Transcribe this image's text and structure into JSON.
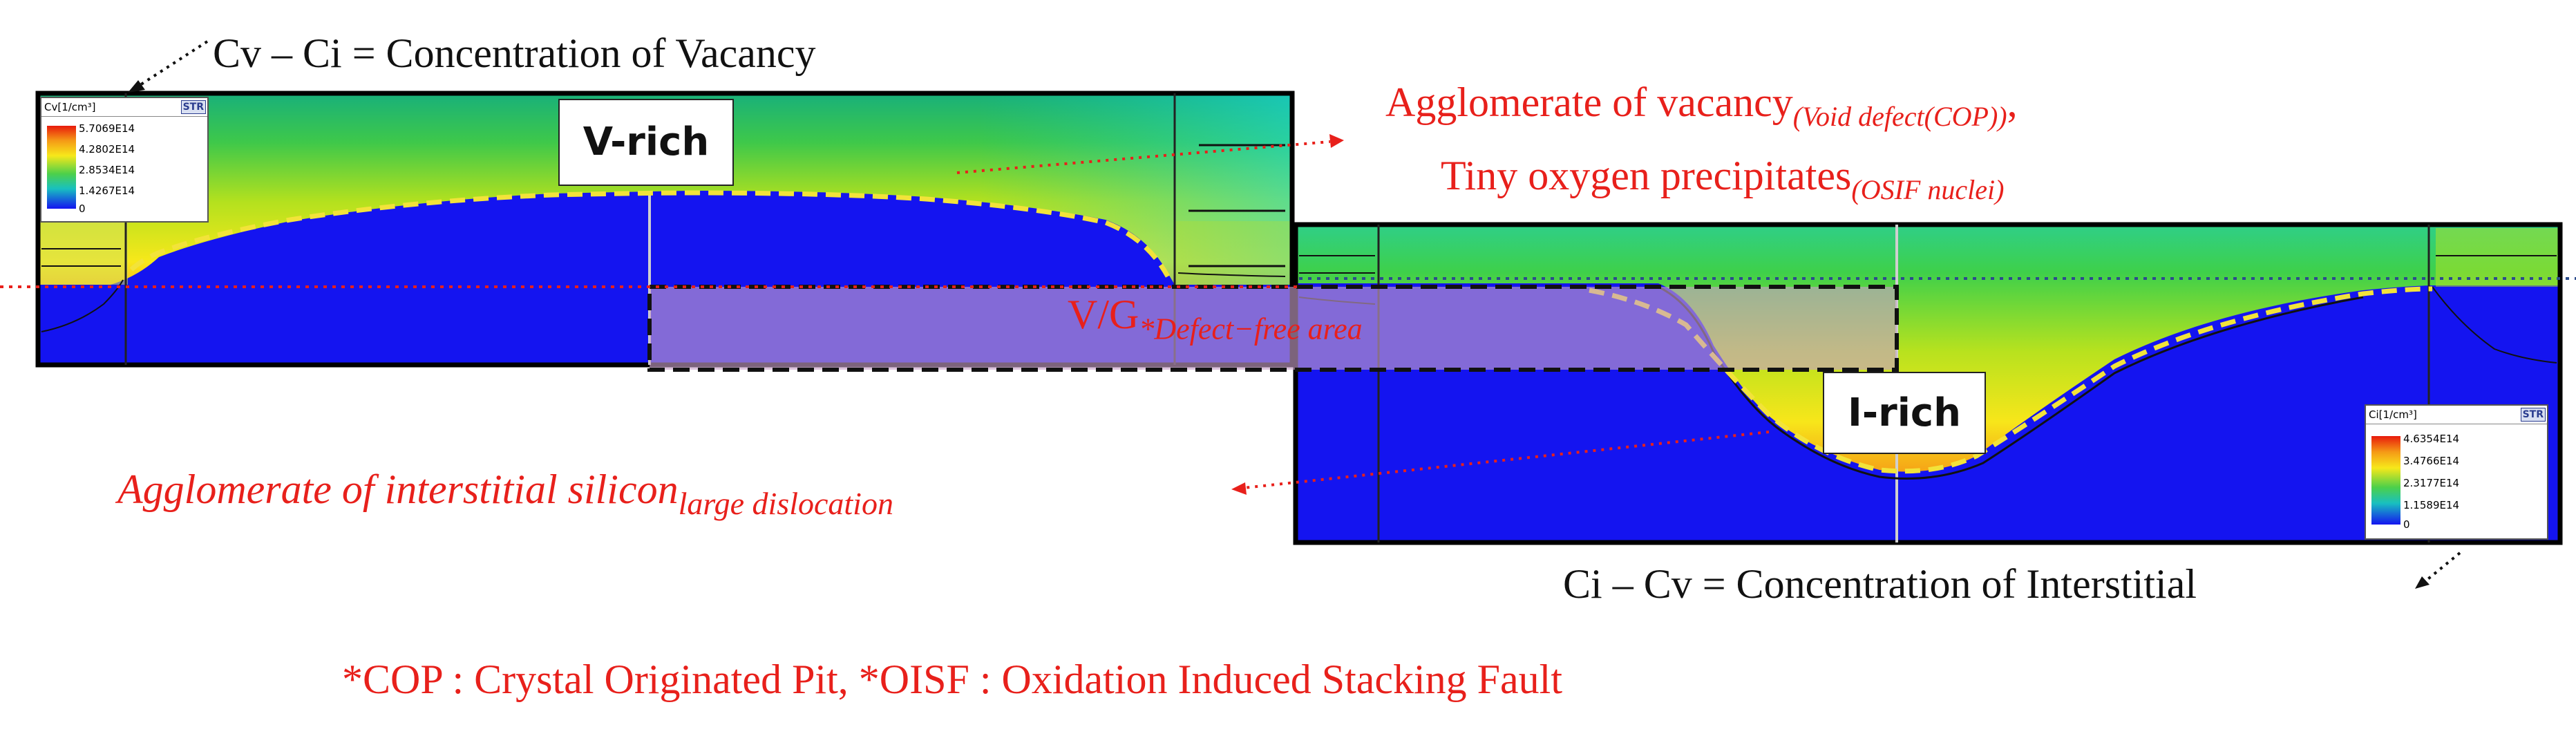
{
  "top_label": "Cv – Ci = Concentration of Vacancy",
  "bottom_label": "Ci – Cv = Concentration of Interstitial",
  "vrich_label": "V-rich",
  "irich_label": "I-rich",
  "vg_label": "V/G",
  "vg_sub": "*Defect−free area",
  "agglom_vacancy": "Agglomerate of vacancy",
  "agglom_vacancy_sub": "(Void defect(COP))",
  "agglom_vacancy_tail": ",",
  "tiny_oxygen": "Tiny oxygen precipitates",
  "tiny_oxygen_sub": "(OSIF nuclei)",
  "agglom_interstitial": "Agglomerate of interstitial silicon",
  "agglom_interstitial_sub": "large dislocation",
  "footnote": "*COP : Crystal Originated Pit, *OISF : Oxidation Induced Stacking Fault",
  "legend_v": {
    "header": "Cv[1/cm³]",
    "str": "STR",
    "ticks": [
      "5.7069E14",
      "4.2802E14",
      "2.8534E14",
      "1.4267E14",
      "0"
    ]
  },
  "legend_i": {
    "header": "Ci[1/cm³]",
    "str": "STR",
    "ticks": [
      "4.6354E14",
      "3.4766E14",
      "2.3177E14",
      "1.1589E14",
      "0"
    ]
  },
  "colors": {
    "red_text": "#e8201b",
    "deep_blue": "#1414f0",
    "defect_free_fill": "#c8a0c8",
    "dash_yellow": "#f2e33a"
  }
}
